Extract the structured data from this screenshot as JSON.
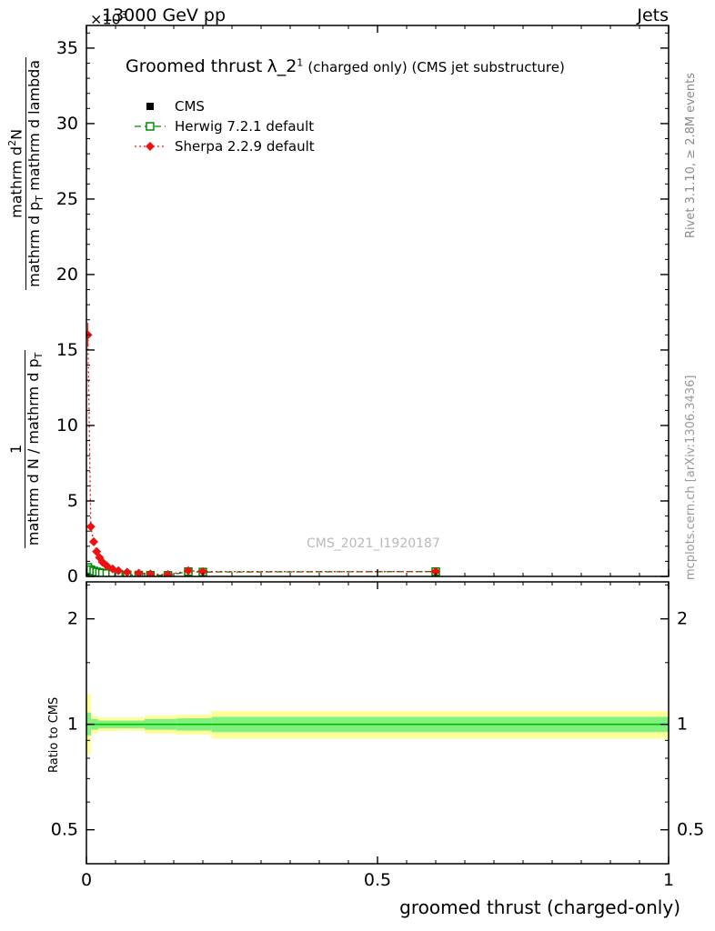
{
  "header": {
    "scale_prefix": "×10",
    "scale_exp": "3",
    "collision_energy": "13000 GeV pp",
    "analysis_group": "Jets"
  },
  "plot_title": {
    "main": "Groomed thrust",
    "observable": "λ_2",
    "observable_sup": "1",
    "suffix": " (charged only) (CMS jet substructure)"
  },
  "legend": {
    "items": [
      {
        "label": "CMS"
      },
      {
        "label": "Herwig 7.2.1 default"
      },
      {
        "label": "Sherpa 2.2.9 default"
      }
    ]
  },
  "watermark": "CMS_2021_I1920187",
  "ylabel": {
    "frac2": {
      "num_pre": "mathrm d",
      "num_sup": "2",
      "num_post": "N",
      "den_pre": "mathrm d p",
      "den_sub": "T",
      "den_post": " mathrm d lambda"
    },
    "frac1": {
      "num": "1",
      "den_pre": "mathrm d N / mathrm d p",
      "den_sub": "T"
    }
  },
  "right_labels": {
    "top": "Rivet 3.1.10, ≥ 2.8M events",
    "bottom": "mcplots.cern.ch [arXiv:1306.3436]"
  },
  "ratio_label": "Ratio to CMS",
  "xaxis": {
    "title": "groomed thrust (charged-only)"
  },
  "chart_data": [
    {
      "type": "scatter",
      "panel": "main",
      "title": "Groomed thrust λ_2^1 (charged only) (CMS jet substructure)",
      "xlabel": "groomed thrust (charged-only)",
      "ylabel": "(1 / dN/dp_T) d^2N / (dp_T d lambda)",
      "y_unit_scale": "×10^3",
      "xlim": [
        0,
        1
      ],
      "ylim": [
        0,
        36.5
      ],
      "grid": false,
      "legend_position": "top-left",
      "yticks": [
        {
          "v": 0,
          "label": "0"
        },
        {
          "v": 5,
          "label": "5"
        },
        {
          "v": 10,
          "label": "10"
        },
        {
          "v": 15,
          "label": "15"
        },
        {
          "v": 20,
          "label": "20"
        },
        {
          "v": 25,
          "label": "25"
        },
        {
          "v": 30,
          "label": "30"
        },
        {
          "v": 35,
          "label": "35"
        }
      ],
      "xticks": [
        {
          "v": 0,
          "label": "0"
        },
        {
          "v": 0.5,
          "label": "0.5"
        },
        {
          "v": 1,
          "label": "1"
        }
      ],
      "series": [
        {
          "name": "CMS",
          "color": "#000000",
          "marker": "square-filled",
          "line": "none",
          "points": [
            [
              0.0025,
              0.3
            ],
            [
              0.0075,
              0.32
            ],
            [
              0.0125,
              0.3
            ],
            [
              0.0175,
              0.27
            ],
            [
              0.0225,
              0.24
            ],
            [
              0.0275,
              0.21
            ],
            [
              0.035,
              0.18
            ],
            [
              0.045,
              0.15
            ],
            [
              0.055,
              0.13
            ],
            [
              0.07,
              0.11
            ],
            [
              0.09,
              0.09
            ],
            [
              0.11,
              0.08
            ],
            [
              0.14,
              0.07
            ],
            [
              0.175,
              0.32
            ],
            [
              0.2,
              0.3
            ],
            [
              0.6,
              0.32
            ]
          ]
        },
        {
          "name": "Herwig 7.2.1 default",
          "color": "#008800",
          "marker": "square-open",
          "line": "dashed",
          "points": [
            [
              0.0025,
              0.6
            ],
            [
              0.0075,
              0.45
            ],
            [
              0.0125,
              0.36
            ],
            [
              0.0175,
              0.3
            ],
            [
              0.0225,
              0.26
            ],
            [
              0.0275,
              0.22
            ],
            [
              0.035,
              0.19
            ],
            [
              0.045,
              0.16
            ],
            [
              0.055,
              0.13
            ],
            [
              0.07,
              0.11
            ],
            [
              0.09,
              0.09
            ],
            [
              0.11,
              0.08
            ],
            [
              0.14,
              0.07
            ],
            [
              0.175,
              0.32
            ],
            [
              0.2,
              0.29
            ],
            [
              0.6,
              0.32
            ]
          ]
        },
        {
          "name": "Sherpa 2.2.9 default",
          "color": "#ee1111",
          "marker": "diamond-filled",
          "line": "dotted",
          "points": [
            [
              0.0025,
              16.0,
              0.8
            ],
            [
              0.0075,
              3.3,
              0.35
            ],
            [
              0.0125,
              2.3,
              0.25
            ],
            [
              0.0175,
              1.65,
              0.2
            ],
            [
              0.0225,
              1.25,
              0.15
            ],
            [
              0.0275,
              0.95,
              0.12
            ],
            [
              0.035,
              0.7,
              0.1
            ],
            [
              0.045,
              0.5
            ],
            [
              0.055,
              0.38
            ],
            [
              0.07,
              0.28
            ],
            [
              0.09,
              0.21
            ],
            [
              0.11,
              0.16
            ],
            [
              0.14,
              0.12
            ],
            [
              0.175,
              0.38
            ],
            [
              0.2,
              0.32
            ],
            [
              0.6,
              0.32
            ]
          ]
        }
      ]
    },
    {
      "type": "ratio-bands",
      "panel": "ratio",
      "ylabel": "Ratio to CMS",
      "xlim": [
        0,
        1
      ],
      "ylim": [
        0.4,
        2.55
      ],
      "yscale": "log",
      "yticks": [
        {
          "v": 0.5,
          "label": "0.5"
        },
        {
          "v": 1,
          "label": "1"
        },
        {
          "v": 2,
          "label": "2"
        }
      ],
      "band_color_outer": "#ffff99",
      "band_color_inner": "#80f080",
      "bands_yellow": [
        [
          0,
          0.008,
          0.82,
          1.22
        ],
        [
          0.008,
          0.02,
          0.94,
          1.06
        ],
        [
          0.02,
          0.05,
          0.955,
          1.045
        ],
        [
          0.05,
          0.1,
          0.96,
          1.045
        ],
        [
          0.1,
          0.155,
          0.94,
          1.06
        ],
        [
          0.155,
          0.215,
          0.935,
          1.065
        ],
        [
          0.215,
          1.0,
          0.91,
          1.09
        ]
      ],
      "bands_green": [
        [
          0,
          0.008,
          0.93,
          1.08
        ],
        [
          0.008,
          0.02,
          0.965,
          1.035
        ],
        [
          0.02,
          0.05,
          0.975,
          1.025
        ],
        [
          0.05,
          0.1,
          0.975,
          1.025
        ],
        [
          0.1,
          0.155,
          0.965,
          1.035
        ],
        [
          0.155,
          0.215,
          0.96,
          1.04
        ],
        [
          0.215,
          1.0,
          0.95,
          1.05
        ]
      ],
      "reference_line": {
        "y": 1.0,
        "color": "#00bb00"
      }
    }
  ]
}
